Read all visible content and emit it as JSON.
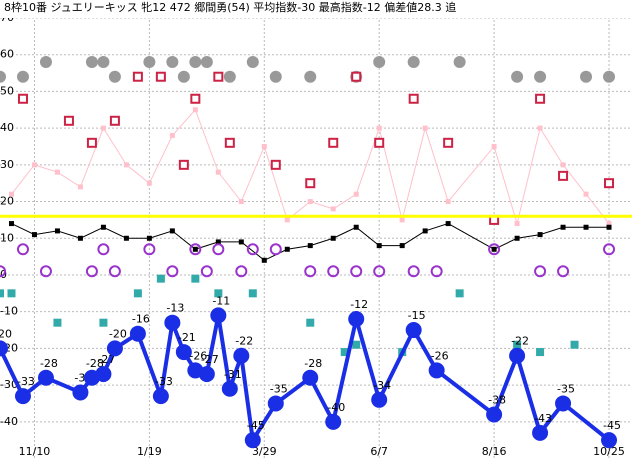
{
  "chart_data": {
    "type": "line",
    "title": "8枠10番 ジュエリーキッス 牝12 472 郷間勇(54) 平均指数-30 最高指数-12 偏差値28.3 追",
    "xlim": [
      0,
      55
    ],
    "xticks": [
      {
        "value": 3,
        "label": "11/10"
      },
      {
        "value": 13,
        "label": "1/19"
      },
      {
        "value": 23,
        "label": "3/29"
      },
      {
        "value": 33,
        "label": "6/7"
      },
      {
        "value": 43,
        "label": "8/16"
      },
      {
        "value": 53,
        "label": "10/25"
      }
    ],
    "ylim": [
      -50.4,
      74.9
    ],
    "yticks": [
      70,
      60,
      50,
      40,
      30,
      20,
      10,
      0,
      -10,
      -20,
      -30,
      -40
    ],
    "grid": true,
    "hline": {
      "value": 16,
      "color": "#ffff00"
    },
    "series": [
      {
        "color": "#ffc0cb",
        "marker": "square",
        "line": true,
        "width": 1,
        "x": [
          1,
          3,
          5,
          7,
          9,
          11,
          13,
          15,
          17,
          19,
          21,
          23,
          25,
          27,
          29,
          31,
          33,
          35,
          37,
          39,
          43,
          45,
          47,
          49,
          51,
          53
        ],
        "values": [
          22,
          30,
          28,
          24,
          40,
          30,
          25,
          38,
          45,
          28,
          20,
          35,
          15,
          20,
          18,
          22,
          40,
          15,
          40,
          20,
          35,
          14,
          40,
          30,
          22,
          14
        ]
      },
      {
        "color": "#000000",
        "marker": "square",
        "line": true,
        "width": 1,
        "x": [
          1,
          3,
          5,
          7,
          9,
          11,
          13,
          15,
          17,
          19,
          21,
          23,
          25,
          27,
          29,
          31,
          33,
          35,
          37,
          39,
          43,
          45,
          47,
          49,
          51,
          53
        ],
        "values": [
          14,
          11,
          12,
          10,
          13,
          10,
          10,
          12,
          7,
          9,
          9,
          4,
          7,
          8,
          10,
          13,
          8,
          8,
          12,
          14,
          7,
          10,
          11,
          13,
          13,
          13
        ]
      },
      {
        "color": "#999999",
        "marker": "circle",
        "line": false,
        "x": [
          0,
          2,
          4,
          8,
          9,
          10,
          13,
          15,
          16,
          17,
          18,
          20,
          22,
          24,
          27,
          31,
          33,
          36,
          40,
          45,
          47,
          51,
          53
        ],
        "values": [
          54,
          54,
          58,
          58,
          58,
          54,
          58,
          58,
          54,
          58,
          58,
          54,
          58,
          54,
          54,
          54,
          58,
          58,
          58,
          54,
          54,
          54,
          54
        ]
      },
      {
        "color": "#cc2244",
        "marker": "hollow-square",
        "line": false,
        "x": [
          2,
          6,
          8,
          10,
          12,
          14,
          16,
          17,
          19,
          20,
          24,
          27,
          29,
          31,
          33,
          36,
          39,
          43,
          47,
          49,
          53
        ],
        "values": [
          48,
          42,
          36,
          42,
          54,
          54,
          30,
          48,
          54,
          36,
          30,
          25,
          36,
          54,
          36,
          48,
          36,
          15,
          48,
          27,
          25
        ]
      },
      {
        "color": "#9933cc",
        "marker": "hollow-circle",
        "line": false,
        "x": [
          0,
          2,
          4,
          8,
          9,
          10,
          13,
          15,
          17,
          18,
          19,
          21,
          22,
          24,
          27,
          29,
          31,
          33,
          36,
          38,
          43,
          47,
          49,
          53
        ],
        "values": [
          1,
          7,
          1,
          1,
          7,
          1,
          7,
          1,
          7,
          1,
          7,
          1,
          7,
          7,
          1,
          1,
          1,
          1,
          1,
          1,
          7,
          1,
          1,
          7
        ]
      },
      {
        "color": "#33aaaa",
        "marker": "square",
        "line": false,
        "x": [
          0,
          1,
          5,
          9,
          12,
          14,
          17,
          19,
          22,
          27,
          30,
          31,
          35,
          40,
          45,
          47,
          50
        ],
        "values": [
          -5,
          -5,
          -13,
          -13,
          -5,
          -1,
          -1,
          -5,
          -5,
          -13,
          -21,
          -19,
          -21,
          -5,
          -19,
          -21,
          -19
        ]
      },
      {
        "color": "#1a2ee6",
        "marker": "circle",
        "line": true,
        "width": 4,
        "labels": true,
        "x": [
          0,
          2,
          4,
          7,
          8,
          9,
          10,
          12,
          14,
          15,
          16,
          17,
          18,
          19,
          20,
          21,
          22,
          24,
          27,
          29,
          31,
          33,
          36,
          38,
          43,
          45,
          47,
          49,
          53
        ],
        "values": [
          -20,
          -33,
          -28,
          -32,
          -28,
          -27,
          -20,
          -16,
          -33,
          -13,
          -21,
          -26,
          -27,
          -11,
          -31,
          -22,
          -45,
          -35,
          -28,
          -40,
          -12,
          -34,
          -15,
          -26,
          -38,
          -22,
          -43,
          -35,
          -45
        ]
      }
    ]
  }
}
